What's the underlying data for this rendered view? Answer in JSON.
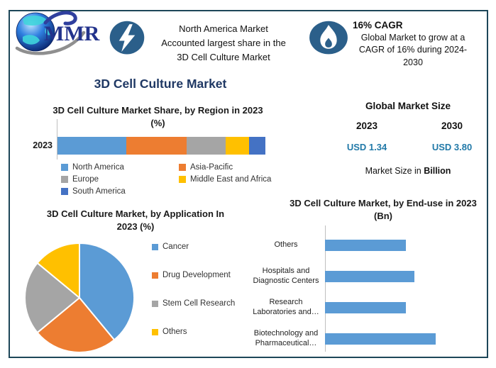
{
  "brand": {
    "name": "MMR"
  },
  "header": {
    "highlight": {
      "lines": [
        "North America Market",
        "Accounted largest share in the",
        "3D Cell Culture Market"
      ]
    },
    "cagr": {
      "title": "16% CAGR",
      "lines": [
        "Global Market to grow at a",
        "CAGR of 16% during 2024-",
        "2030"
      ]
    }
  },
  "main_title": "3D Cell Culture Market",
  "market_size": {
    "title": "Global Market Size",
    "years": [
      "2023",
      "2030"
    ],
    "values": [
      "USD 1.34",
      "USD 3.80"
    ],
    "note_prefix": "Market Size in ",
    "note_bold": "Billion"
  },
  "colors": {
    "accent_navy": "#1F3864",
    "value_blue": "#2179A8",
    "icon_blue": "#2B5F8A",
    "frame_teal": "#1D4659",
    "axis_gray": "#BFBFBF"
  },
  "chart_data": [
    {
      "id": "region-share",
      "type": "bar",
      "subtype": "stacked-horizontal",
      "title": "3D Cell Culture Market Share, by Region in 2023 (%)",
      "category": "2023",
      "series": [
        {
          "name": "North America",
          "value": 33,
          "color": "#5B9BD5"
        },
        {
          "name": "Asia-Pacific",
          "value": 29,
          "color": "#ED7D31"
        },
        {
          "name": "Europe",
          "value": 19,
          "color": "#A5A5A5"
        },
        {
          "name": "Middle East and Africa",
          "value": 11,
          "color": "#FFC000"
        },
        {
          "name": "South America",
          "value": 8,
          "color": "#4472C4"
        }
      ],
      "xlim": [
        0,
        100
      ],
      "legend_position": "bottom"
    },
    {
      "id": "application-share",
      "type": "pie",
      "title": "3D Cell Culture Market, by Application In 2023 (%)",
      "slices": [
        {
          "name": "Cancer",
          "value": 39,
          "color": "#5B9BD5"
        },
        {
          "name": "Drug Development",
          "value": 25,
          "color": "#ED7D31"
        },
        {
          "name": "Stem Cell Research",
          "value": 22,
          "color": "#A5A5A5"
        },
        {
          "name": "Others",
          "value": 14,
          "color": "#FFC000"
        }
      ],
      "start_angle_deg": 0,
      "direction": "clockwise",
      "legend_position": "right"
    },
    {
      "id": "end-use",
      "type": "bar",
      "subtype": "horizontal",
      "title": "3D Cell Culture Market, by End-use in 2023 (Bn)",
      "categories": [
        "Others",
        "Hospitals and Diagnostic Centers",
        "Research Laboratories and…",
        "Biotechnology and Pharmaceutical…"
      ],
      "values": [
        0.3,
        0.33,
        0.3,
        0.41
      ],
      "xlim": [
        0,
        0.57
      ],
      "bar_color": "#5B9BD5",
      "grid": false
    }
  ]
}
